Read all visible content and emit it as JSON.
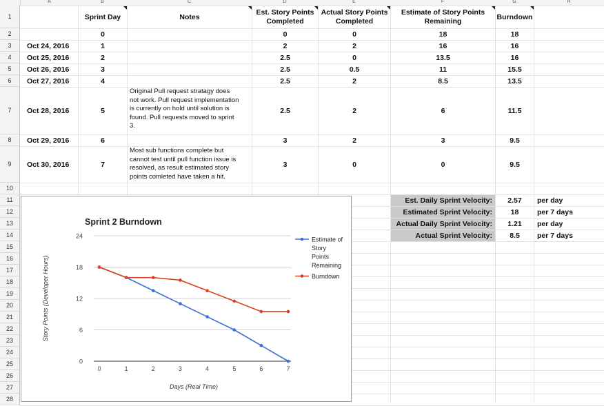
{
  "columns": [
    "A",
    "B",
    "C",
    "D",
    "E",
    "F",
    "G",
    "H"
  ],
  "rows": [
    "1",
    "2",
    "3",
    "4",
    "5",
    "6",
    "7",
    "8",
    "9",
    "10",
    "11",
    "12",
    "13",
    "14",
    "15",
    "16",
    "17",
    "18",
    "19",
    "20",
    "21",
    "22",
    "23",
    "24",
    "25",
    "26",
    "27",
    "28"
  ],
  "headers": {
    "sprint_day": "Sprint Day",
    "notes": "Notes",
    "est_completed": [
      "Est. Story Points",
      "Completed"
    ],
    "actual_completed": [
      "Actual Story Points",
      "Completed"
    ],
    "remaining": [
      "Estimate of Story Points",
      "Remaining"
    ],
    "burndown": "Burndown"
  },
  "table": [
    {
      "date": "",
      "day": "0",
      "notes": [],
      "est": "0",
      "actual": "0",
      "remaining": "18",
      "burndown": "18"
    },
    {
      "date": "Oct 24, 2016",
      "day": "1",
      "notes": [],
      "est": "2",
      "actual": "2",
      "remaining": "16",
      "burndown": "16"
    },
    {
      "date": "Oct 25, 2016",
      "day": "2",
      "notes": [],
      "est": "2.5",
      "actual": "0",
      "remaining": "13.5",
      "burndown": "16"
    },
    {
      "date": "Oct 26, 2016",
      "day": "3",
      "notes": [],
      "est": "2.5",
      "actual": "0.5",
      "remaining": "11",
      "burndown": "15.5"
    },
    {
      "date": "Oct 27, 2016",
      "day": "4",
      "notes": [],
      "est": "2.5",
      "actual": "2",
      "remaining": "8.5",
      "burndown": "13.5"
    },
    {
      "date": "Oct 28, 2016",
      "day": "5",
      "notes": [
        "Original Pull request stratagy does",
        "not work. Pull request implementation",
        "is currently on hold until solution is",
        "found. Pull requests moved to sprint",
        "3."
      ],
      "est": "2.5",
      "actual": "2",
      "remaining": "6",
      "burndown": "11.5"
    },
    {
      "date": "Oct 29, 2016",
      "day": "6",
      "notes": [],
      "est": "3",
      "actual": "2",
      "remaining": "3",
      "burndown": "9.5"
    },
    {
      "date": "Oct 30, 2016",
      "day": "7",
      "notes": [
        "Most sub functions complete but",
        "cannot test until pull function issue is",
        "resolved, as result estimated story",
        "points comleted have taken a hit."
      ],
      "est": "3",
      "actual": "0",
      "remaining": "0",
      "burndown": "9.5"
    }
  ],
  "velocity": [
    {
      "label": "Est. Daily Sprint Velocity:",
      "value": "2.57",
      "unit": "per day"
    },
    {
      "label": "Estimated Sprint Velocity:",
      "value": "18",
      "unit": "per 7 days"
    },
    {
      "label": "Actual Daily Sprint Velocity:",
      "value": "1.21",
      "unit": "per day"
    },
    {
      "label": "Actual Sprint Velocity:",
      "value": "8.5",
      "unit": "per 7 days"
    }
  ],
  "chart_data": {
    "type": "line",
    "title": "Sprint 2 Burndown",
    "xlabel": "Days (Real Time)",
    "ylabel": "Story Points (Developer Hours)",
    "x": [
      0,
      1,
      2,
      3,
      4,
      5,
      6,
      7
    ],
    "xlim": [
      0,
      7
    ],
    "ylim": [
      0,
      24
    ],
    "yticks": [
      "0",
      "6",
      "12",
      "18",
      "24"
    ],
    "xticks": [
      "0",
      "1",
      "2",
      "3",
      "4",
      "5",
      "6",
      "7"
    ],
    "grid": true,
    "legend_position": "right",
    "series": [
      {
        "name": "Estimate of Story Points Remaining",
        "legend_lines": [
          "Estimate of",
          "Story",
          "Points",
          "Remaining"
        ],
        "color": "#3c6fd6",
        "values": [
          18,
          16,
          13.5,
          11,
          8.5,
          6,
          3,
          0
        ]
      },
      {
        "name": "Burndown",
        "legend_lines": [
          "Burndown"
        ],
        "color": "#d9401e",
        "values": [
          18,
          16,
          16,
          15.5,
          13.5,
          11.5,
          9.5,
          9.5
        ]
      }
    ]
  }
}
